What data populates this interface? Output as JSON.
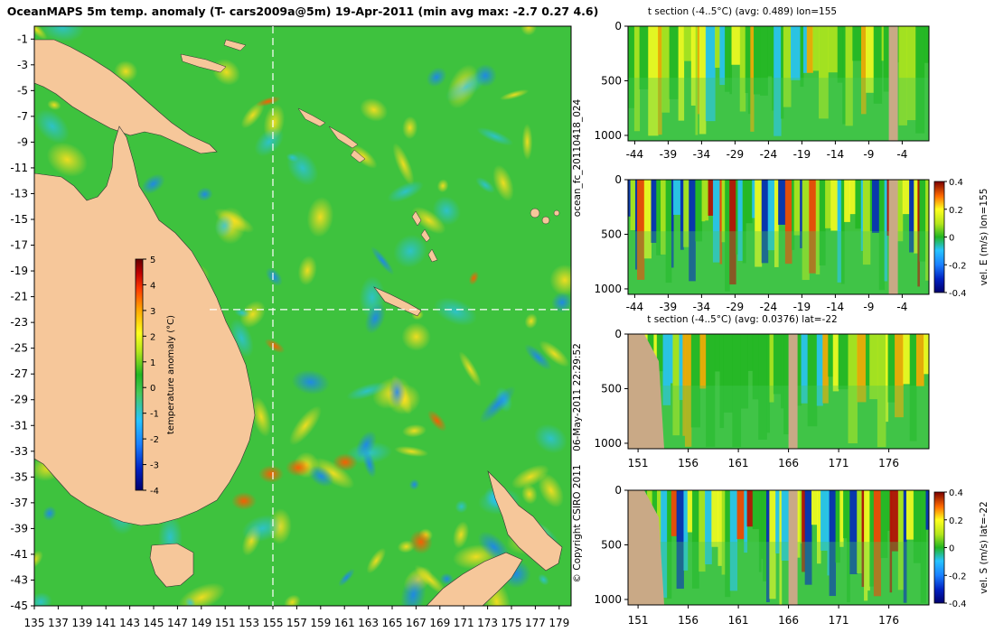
{
  "colors": {
    "land": "#f6c79a",
    "section_mask": "#c9a986",
    "ocean_base": "#3ec23e",
    "colormap": [
      "#00006e",
      "#0020c0",
      "#1a80ff",
      "#27c3ff",
      "#46c95a",
      "#22b622",
      "#b4e61c",
      "#ffff1e",
      "#ffa800",
      "#ff3c00",
      "#c00000",
      "#640000"
    ]
  },
  "map": {
    "title": "OceanMAPS 5m temp. anomaly (T- cars2009a@5m) 19-Apr-2011 (min avg max: -2.7 0.27 4.6)",
    "x_ticks": [
      "135",
      "137",
      "139",
      "141",
      "143",
      "145",
      "147",
      "149",
      "151",
      "153",
      "155",
      "157",
      "159",
      "161",
      "163",
      "165",
      "167",
      "169",
      "171",
      "173",
      "175",
      "177",
      "179"
    ],
    "y_ticks": [
      "-1",
      "-3",
      "-5",
      "-7",
      "-9",
      "-11",
      "-13",
      "-15",
      "-17",
      "-19",
      "-21",
      "-23",
      "-25",
      "-27",
      "-29",
      "-31",
      "-33",
      "-35",
      "-37",
      "-39",
      "-41",
      "-43",
      "-45"
    ],
    "x_range": [
      135,
      180
    ],
    "y_range": [
      0,
      -45
    ],
    "section_lon": 155,
    "section_lat": -22,
    "colorbar": {
      "label": "temperature anomaly (°C)",
      "ticks": [
        "5",
        "4",
        "3",
        "2",
        "1",
        "0",
        "-1",
        "-2",
        "-3",
        "-4"
      ],
      "range": [
        -4,
        5
      ]
    }
  },
  "side_labels": {
    "forecast_id": "ocean_fc_20110418_024",
    "timestamp": "06-May-2011 22:29:52",
    "copyright": "© Copyright CSIRO 2011"
  },
  "chart_data": [
    {
      "type": "heatmap",
      "title": "t section (-4..5°C) (avg: 0.489) lon=155",
      "x_ticks": [
        "-44",
        "-39",
        "-34",
        "-29",
        "-24",
        "-19",
        "-14",
        "-9",
        "-4"
      ],
      "y_ticks": [
        "0",
        "500",
        "1000"
      ],
      "x_range": [
        -45,
        0
      ],
      "y_range": [
        0,
        1050
      ],
      "colorbar": null
    },
    {
      "type": "heatmap",
      "title": "",
      "x_ticks": [
        "-44",
        "-39",
        "-34",
        "-29",
        "-24",
        "-19",
        "-14",
        "-9",
        "-4"
      ],
      "y_ticks": [
        "0",
        "500",
        "1000"
      ],
      "x_range": [
        -45,
        0
      ],
      "y_range": [
        0,
        1050
      ],
      "colorbar": {
        "label": "vel. E (m/s) lon=155",
        "ticks": [
          "0.4",
          "0.2",
          "0",
          "-0.2",
          "-0.4"
        ],
        "range": [
          -0.4,
          0.4
        ]
      }
    },
    {
      "type": "heatmap",
      "title": "t section (-4..5°C) (avg: 0.0376) lat=-22",
      "x_ticks": [
        "151",
        "156",
        "161",
        "166",
        "171",
        "176"
      ],
      "y_ticks": [
        "0",
        "500",
        "1000"
      ],
      "x_range": [
        150,
        180
      ],
      "y_range": [
        0,
        1050
      ],
      "colorbar": null
    },
    {
      "type": "heatmap",
      "title": "",
      "x_ticks": [
        "151",
        "156",
        "161",
        "166",
        "171",
        "176"
      ],
      "y_ticks": [
        "0",
        "500",
        "1000"
      ],
      "x_range": [
        150,
        180
      ],
      "y_range": [
        0,
        1050
      ],
      "colorbar": {
        "label": "vel. S (m/s) lat=-22",
        "ticks": [
          "0.4",
          "0.2",
          "0",
          "-0.2",
          "-0.4"
        ],
        "range": [
          -0.4,
          0.4
        ]
      }
    }
  ]
}
